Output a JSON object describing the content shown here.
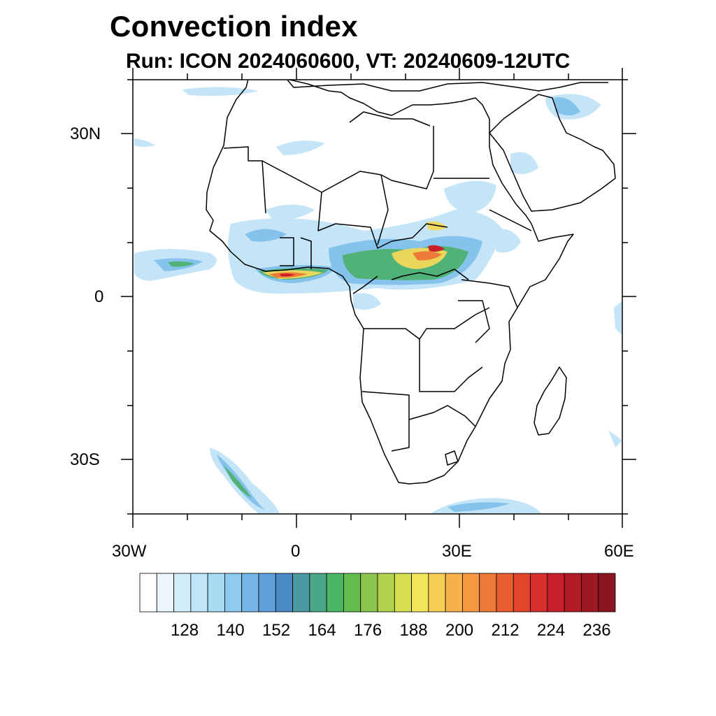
{
  "title": "Convection index",
  "subtitle": "Run: ICON 2024060600,  VT: 20240609-12UTC",
  "lat_axis": [
    {
      "name": "lat-tick-label-30n",
      "text": "30N"
    },
    {
      "name": "lat-tick-label-0",
      "text": "0"
    },
    {
      "name": "lat-tick-label-30s",
      "text": "30S"
    }
  ],
  "lon_axis": [
    {
      "name": "lon-tick-label-30w",
      "text": "30W"
    },
    {
      "name": "lon-tick-label-0",
      "text": "0"
    },
    {
      "name": "lon-tick-label-30e",
      "text": "30E"
    },
    {
      "name": "lon-tick-label-60e",
      "text": "60E"
    }
  ],
  "colorbar": {
    "labels": [
      "128",
      "140",
      "152",
      "164",
      "176",
      "188",
      "200",
      "212",
      "224",
      "236"
    ],
    "colors": [
      "#ffffff",
      "#eaf6fc",
      "#d3eefa",
      "#bfe6f8",
      "#a8dcf4",
      "#8fcbee",
      "#76b6e6",
      "#5f9fd8",
      "#4a8ac2",
      "#4a9aa2",
      "#4aa886",
      "#4ab564",
      "#62bd4e",
      "#8cc64e",
      "#b3d24e",
      "#d8df50",
      "#f2e55a",
      "#f6cd52",
      "#f6b24a",
      "#f49842",
      "#ee7a38",
      "#e85e30",
      "#e2442c",
      "#d82e2c",
      "#c8202a",
      "#b21a26",
      "#9e1822",
      "#8a1420"
    ]
  },
  "map": {
    "extent": {
      "lon": [
        -30,
        60
      ],
      "lat": [
        -40,
        40
      ]
    },
    "region": "Africa",
    "field": "Convection index"
  }
}
